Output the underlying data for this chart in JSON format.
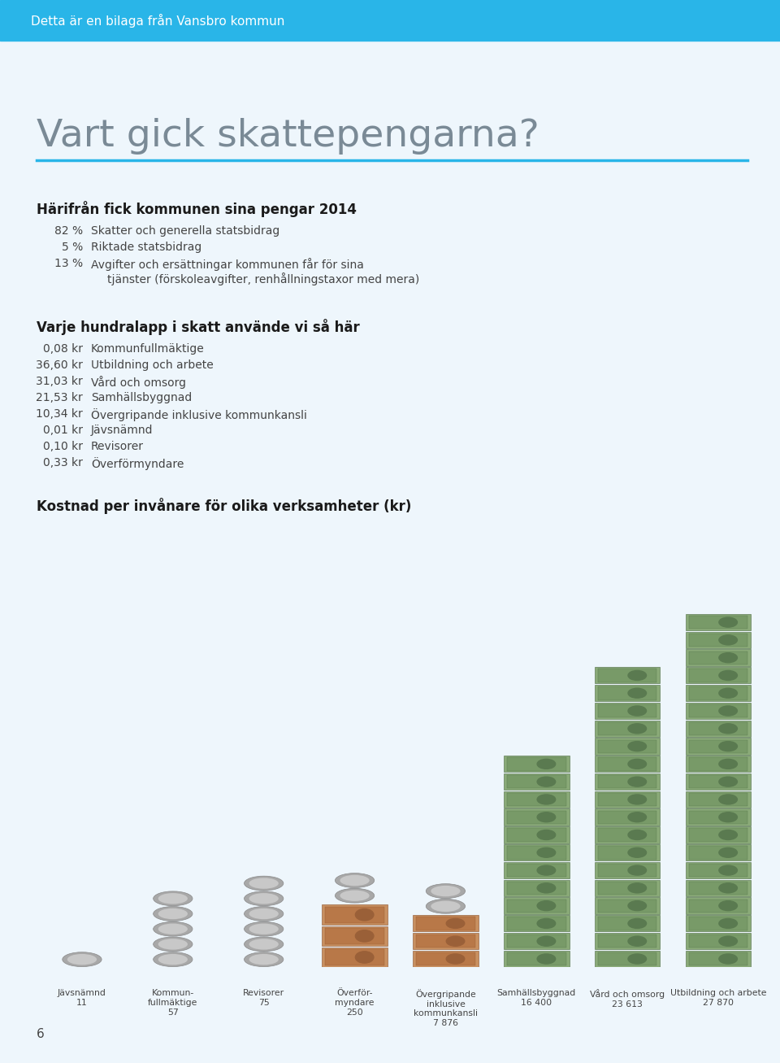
{
  "page_bg": "#eef6fc",
  "header_bg": "#29b5e8",
  "header_text": "Detta är en bilaga från Vansbro kommun",
  "header_text_color": "#ffffff",
  "title": "Vart gick skattepengarna?",
  "title_color": "#7a8a96",
  "title_underline_color": "#29b5e8",
  "section1_header": "Härifrån fick kommunen sina pengar 2014",
  "section1_items": [
    [
      "82 %",
      "Skatter och generella statsbidrag"
    ],
    [
      "5 %",
      "Riktade statsbidrag"
    ],
    [
      "13 %",
      "Avgifter och ersättningar kommunen får för sina"
    ]
  ],
  "section1_item3_cont": "tjänster (förskoleavgifter, renhållningstaxor med mera)",
  "section2_header": "Varje hundralapp i skatt använde vi så här",
  "section2_items": [
    [
      "0,08 kr",
      "Kommunfullmäktige"
    ],
    [
      "36,60 kr",
      "Utbildning och arbete"
    ],
    [
      "31,03 kr",
      "Vård och omsorg"
    ],
    [
      "21,53 kr",
      "Samhällsbyggnad"
    ],
    [
      "10,34 kr",
      "Övergripande inklusive kommunkansli"
    ],
    [
      "0,01 kr",
      "Jävsnämnd"
    ],
    [
      "0,10 kr",
      "Revisorer"
    ],
    [
      "0,33 kr",
      "Överförmyndare"
    ]
  ],
  "section3_header": "Kostnad per invånare för olika verksamheter (kr)",
  "bar_labels": [
    "Jävsnämnd\n11",
    "Kommun-\nfullmäktige\n57",
    "Revisorer\n75",
    "Överför-\nmyndare\n250",
    "Övergripande\ninklusive\nkommunkansli\n7 876",
    "Samhällsbyggnad\n16 400",
    "Vård och omsorg\n23 613",
    "Utbildning och arbete\n27 870"
  ],
  "bar_values": [
    11,
    57,
    75,
    250,
    7876,
    16400,
    23613,
    27870
  ],
  "note_color_green1": "#8aaa78",
  "note_color_green2": "#789a68",
  "note_face_green": "#5a7a50",
  "note_ec_green": "#4a6a40",
  "note_color_orange1": "#c89060",
  "note_color_orange2": "#b87848",
  "note_face_orange": "#9a6038",
  "note_ec_orange": "#8a5028",
  "note_color_purple1": "#b090a8",
  "note_color_purple2": "#a08098",
  "note_face_purple": "#806070",
  "note_ec_purple": "#705060",
  "coin_color": "#a8a8a8",
  "coin_highlight": "#c8c8c8",
  "footer_text": "6",
  "text_color": "#444444",
  "bold_color": "#1a1a1a"
}
